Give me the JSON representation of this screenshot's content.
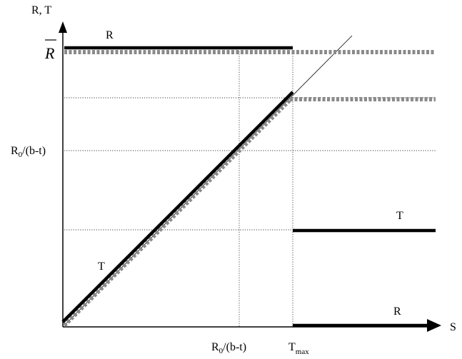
{
  "axes": {
    "y_label": "R, T",
    "x_label": "S"
  },
  "y_ticks": {
    "r_bar": "R",
    "r0_main": "R",
    "r0_sub": "0",
    "r0_rest": "/(b-t)"
  },
  "x_ticks": {
    "r0_main": "R",
    "r0_sub": "0",
    "r0_rest": "/(b-t)",
    "tmax_main": "T",
    "tmax_sub": "max"
  },
  "curve_labels": {
    "r_top": "R",
    "t_diag": "T",
    "t_right": "T",
    "r_bottom": "R"
  }
}
